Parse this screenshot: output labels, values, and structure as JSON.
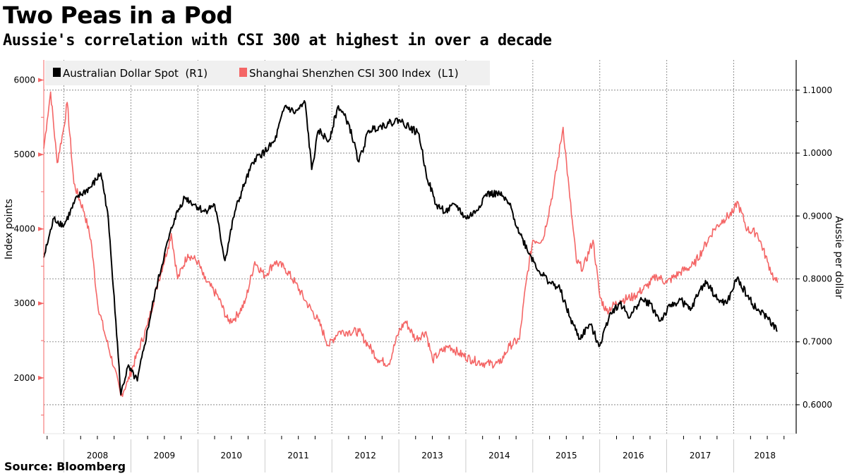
{
  "title": "Two Peas in a Pod",
  "subtitle": "Aussie's correlation with CSI 300 at highest in over a decade",
  "source": "Source: Bloomberg",
  "chart_data": {
    "type": "line",
    "title": "Two Peas in a Pod",
    "subtitle": "Aussie's correlation with CSI 300 at highest in over a decade",
    "xlabel": "",
    "ylabel_left": "Index points",
    "ylabel_right": "Aussie per dollar",
    "x_ticks": [
      "2008",
      "2009",
      "2010",
      "2011",
      "2012",
      "2013",
      "2014",
      "2015",
      "2016",
      "2017",
      "2018"
    ],
    "xlim": [
      "2007-09-13",
      "2018-09-13"
    ],
    "ylim_left": [
      1250,
      6270
    ],
    "ylim_right": [
      0.554,
      1.148
    ],
    "y_ticks_left": [
      "2000",
      "3000",
      "4000",
      "5000",
      "6000"
    ],
    "y_ticks_right": [
      "0.6000",
      "0.7000",
      "0.8000",
      "0.9000",
      "1.0000",
      "1.1000"
    ],
    "grid": true,
    "legend_position": "top-left",
    "colors": {
      "aud": "#000000",
      "csi": "#f46666"
    },
    "series": [
      {
        "name": "Australian Dollar Spot  (R1)",
        "axis": "right",
        "color": "#000000",
        "points": [
          [
            "2007-09-13",
            0.834
          ],
          [
            "2007-11-07",
            0.896
          ],
          [
            "2008-01-01",
            0.885
          ],
          [
            "2008-03-14",
            0.93
          ],
          [
            "2008-05-27",
            0.946
          ],
          [
            "2008-07-20",
            0.968
          ],
          [
            "2008-08-26",
            0.907
          ],
          [
            "2008-10-01",
            0.773
          ],
          [
            "2008-11-07",
            0.616
          ],
          [
            "2008-12-14",
            0.66
          ],
          [
            "2009-02-06",
            0.638
          ],
          [
            "2009-03-14",
            0.694
          ],
          [
            "2009-05-08",
            0.773
          ],
          [
            "2009-07-02",
            0.84
          ],
          [
            "2009-08-26",
            0.896
          ],
          [
            "2009-10-20",
            0.93
          ],
          [
            "2009-12-14",
            0.918
          ],
          [
            "2010-02-06",
            0.907
          ],
          [
            "2010-04-01",
            0.918
          ],
          [
            "2010-05-27",
            0.829
          ],
          [
            "2010-07-20",
            0.907
          ],
          [
            "2010-09-13",
            0.952
          ],
          [
            "2010-11-07",
            0.991
          ],
          [
            "2011-01-01",
            1.002
          ],
          [
            "2011-02-25",
            1.019
          ],
          [
            "2011-04-20",
            1.075
          ],
          [
            "2011-06-14",
            1.064
          ],
          [
            "2011-08-08",
            1.08
          ],
          [
            "2011-09-13",
            0.974
          ],
          [
            "2011-10-20",
            1.036
          ],
          [
            "2011-12-14",
            1.019
          ],
          [
            "2012-02-06",
            1.075
          ],
          [
            "2012-04-01",
            1.047
          ],
          [
            "2012-05-27",
            0.986
          ],
          [
            "2012-07-20",
            1.036
          ],
          [
            "2012-09-13",
            1.042
          ],
          [
            "2012-11-07",
            1.047
          ],
          [
            "2013-01-01",
            1.053
          ],
          [
            "2013-02-25",
            1.042
          ],
          [
            "2013-04-20",
            1.03
          ],
          [
            "2013-05-27",
            0.969
          ],
          [
            "2013-07-20",
            0.918
          ],
          [
            "2013-09-13",
            0.907
          ],
          [
            "2013-11-07",
            0.918
          ],
          [
            "2014-01-01",
            0.896
          ],
          [
            "2014-02-25",
            0.907
          ],
          [
            "2014-04-20",
            0.935
          ],
          [
            "2014-07-02",
            0.935
          ],
          [
            "2014-08-26",
            0.918
          ],
          [
            "2014-10-20",
            0.873
          ],
          [
            "2014-12-14",
            0.84
          ],
          [
            "2015-02-06",
            0.812
          ],
          [
            "2015-04-01",
            0.795
          ],
          [
            "2015-05-27",
            0.784
          ],
          [
            "2015-07-20",
            0.739
          ],
          [
            "2015-09-13",
            0.705
          ],
          [
            "2015-11-07",
            0.728
          ],
          [
            "2016-01-01",
            0.694
          ],
          [
            "2016-02-25",
            0.745
          ],
          [
            "2016-04-20",
            0.761
          ],
          [
            "2016-06-14",
            0.739
          ],
          [
            "2016-08-08",
            0.767
          ],
          [
            "2016-10-01",
            0.761
          ],
          [
            "2016-11-25",
            0.733
          ],
          [
            "2017-01-19",
            0.756
          ],
          [
            "2017-03-14",
            0.767
          ],
          [
            "2017-05-08",
            0.75
          ],
          [
            "2017-07-02",
            0.784
          ],
          [
            "2017-08-08",
            0.795
          ],
          [
            "2017-10-01",
            0.767
          ],
          [
            "2017-11-25",
            0.761
          ],
          [
            "2018-01-19",
            0.801
          ],
          [
            "2018-03-14",
            0.773
          ],
          [
            "2018-05-08",
            0.75
          ],
          [
            "2018-07-02",
            0.739
          ],
          [
            "2018-08-26",
            0.717
          ]
        ]
      },
      {
        "name": "Shanghai Shenzhen CSI 300 Index  (L1)",
        "axis": "left",
        "color": "#f46666",
        "points": [
          [
            "2007-09-13",
            5080
          ],
          [
            "2007-10-01",
            5460
          ],
          [
            "2007-10-20",
            5840
          ],
          [
            "2007-11-25",
            4890
          ],
          [
            "2008-01-01",
            5365
          ],
          [
            "2008-01-19",
            5700
          ],
          [
            "2008-02-25",
            4610
          ],
          [
            "2008-04-20",
            4230
          ],
          [
            "2008-05-27",
            3850
          ],
          [
            "2008-07-02",
            3000
          ],
          [
            "2008-08-08",
            2620
          ],
          [
            "2008-10-01",
            2140
          ],
          [
            "2008-11-07",
            1760
          ],
          [
            "2008-12-14",
            1950
          ],
          [
            "2009-02-06",
            2330
          ],
          [
            "2009-04-01",
            2710
          ],
          [
            "2009-05-27",
            3280
          ],
          [
            "2009-07-20",
            3750
          ],
          [
            "2009-08-08",
            3940
          ],
          [
            "2009-09-13",
            3330
          ],
          [
            "2009-11-07",
            3660
          ],
          [
            "2010-01-01",
            3560
          ],
          [
            "2010-02-06",
            3330
          ],
          [
            "2010-04-20",
            3090
          ],
          [
            "2010-06-14",
            2760
          ],
          [
            "2010-07-20",
            2800
          ],
          [
            "2010-09-13",
            3000
          ],
          [
            "2010-11-07",
            3560
          ],
          [
            "2011-01-01",
            3370
          ],
          [
            "2011-02-25",
            3560
          ],
          [
            "2011-04-20",
            3470
          ],
          [
            "2011-06-14",
            3280
          ],
          [
            "2011-08-08",
            3040
          ],
          [
            "2011-10-20",
            2760
          ],
          [
            "2011-12-14",
            2430
          ],
          [
            "2012-02-06",
            2620
          ],
          [
            "2012-04-01",
            2620
          ],
          [
            "2012-05-27",
            2620
          ],
          [
            "2012-07-20",
            2430
          ],
          [
            "2012-09-13",
            2240
          ],
          [
            "2012-11-07",
            2190
          ],
          [
            "2013-01-01",
            2620
          ],
          [
            "2013-02-06",
            2760
          ],
          [
            "2013-04-01",
            2520
          ],
          [
            "2013-05-27",
            2620
          ],
          [
            "2013-07-02",
            2240
          ],
          [
            "2013-08-08",
            2330
          ],
          [
            "2013-10-01",
            2430
          ],
          [
            "2013-11-25",
            2330
          ],
          [
            "2014-02-06",
            2240
          ],
          [
            "2014-04-20",
            2190
          ],
          [
            "2014-07-02",
            2190
          ],
          [
            "2014-08-26",
            2430
          ],
          [
            "2014-10-20",
            2520
          ],
          [
            "2014-11-25",
            3280
          ],
          [
            "2015-01-01",
            3850
          ],
          [
            "2015-02-25",
            3850
          ],
          [
            "2015-04-20",
            4510
          ],
          [
            "2015-06-14",
            5365
          ],
          [
            "2015-07-20",
            4420
          ],
          [
            "2015-08-26",
            3560
          ],
          [
            "2015-10-01",
            3470
          ],
          [
            "2015-11-25",
            3850
          ],
          [
            "2016-01-01",
            3090
          ],
          [
            "2016-02-06",
            2900
          ],
          [
            "2016-04-20",
            3040
          ],
          [
            "2016-07-02",
            3090
          ],
          [
            "2016-09-13",
            3230
          ],
          [
            "2016-11-07",
            3370
          ],
          [
            "2017-01-01",
            3280
          ],
          [
            "2017-03-14",
            3420
          ],
          [
            "2017-05-27",
            3520
          ],
          [
            "2017-07-20",
            3750
          ],
          [
            "2017-09-13",
            3990
          ],
          [
            "2017-11-07",
            4130
          ],
          [
            "2018-01-01",
            4230
          ],
          [
            "2018-01-19",
            4370
          ],
          [
            "2018-03-14",
            3990
          ],
          [
            "2018-05-08",
            3940
          ],
          [
            "2018-07-02",
            3560
          ],
          [
            "2018-08-08",
            3330
          ],
          [
            "2018-08-26",
            3280
          ]
        ]
      }
    ]
  }
}
